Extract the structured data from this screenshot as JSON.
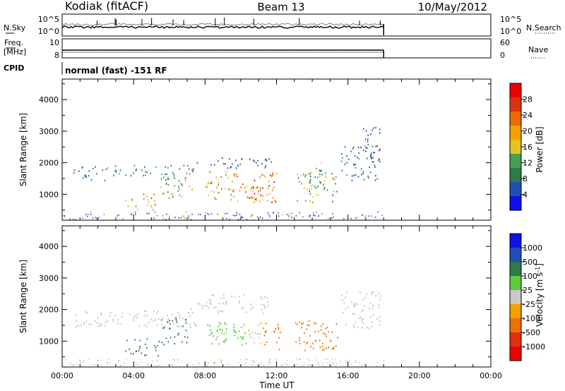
{
  "header": {
    "radar": "Kodiak (fitACF)",
    "beam": "Beam 13",
    "date": "10/May/2012"
  },
  "panels": {
    "nsky_label": "N.Sky",
    "nsky_ticks": [
      "10^5",
      "10^0"
    ],
    "nsearch_label": "N.Search",
    "nsearch_ticks": [
      "10^5",
      "10^0"
    ],
    "freq_label_1": "Freq.",
    "freq_label_2": "[MHz]",
    "freq_ticks": [
      "10",
      "8"
    ],
    "nave_label": "Nave",
    "nave_ticks": [
      "60",
      "0"
    ],
    "cpid_label": "CPID",
    "cpid_value": "normal (fast) -151 RF"
  },
  "colors": {
    "power_scale": [
      "#1010ee",
      "#1f4fb4",
      "#2f7a4a",
      "#46a050",
      "#e8c020",
      "#f5a000",
      "#ee6a00",
      "#e03010",
      "#ee0000"
    ],
    "velocity_scale": [
      "#1010ee",
      "#1f4fb4",
      "#2f7a4a",
      "#5ccc3a",
      "#c8c8c8",
      "#f0a000",
      "#ee7000",
      "#e03010",
      "#ee0000"
    ],
    "velocity_gray": "#c0c0bc"
  },
  "chart_data": [
    {
      "type": "heatmap",
      "name": "power",
      "x": [
        "00:00",
        "04:00",
        "08:00",
        "12:00",
        "16:00",
        "20:00",
        "00:00"
      ],
      "xlim_hours": [
        0,
        24
      ],
      "ylabel": "Slant Range [km]",
      "yticks": [
        1000,
        2000,
        3000,
        4000
      ],
      "ylim": [
        180,
        4650
      ],
      "colorbar_label": "Power [dB]",
      "colorbar_ticks": [
        "28",
        "24",
        "20",
        "16",
        "12",
        "8",
        "4"
      ],
      "colorbar_range": [
        0,
        32
      ],
      "data_end_hour": 18,
      "regions": [
        {
          "t": [
            0.6,
            2.5
          ],
          "r": [
            1450,
            1900
          ],
          "v": 8
        },
        {
          "t": [
            2.5,
            7.5
          ],
          "r": [
            1600,
            1950
          ],
          "v": 10
        },
        {
          "t": [
            3.5,
            5.2
          ],
          "r": [
            500,
            1050
          ],
          "v": 14
        },
        {
          "t": [
            5.5,
            7.5
          ],
          "r": [
            900,
            1700
          ],
          "v": 12
        },
        {
          "t": [
            7.5,
            11.8
          ],
          "r": [
            1850,
            2200
          ],
          "v": 6
        },
        {
          "t": [
            8.0,
            9.5
          ],
          "r": [
            850,
            1750
          ],
          "v": 16
        },
        {
          "t": [
            9.5,
            12.0
          ],
          "r": [
            750,
            1700
          ],
          "v": 21
        },
        {
          "t": [
            10.5,
            11.8
          ],
          "r": [
            800,
            1300
          ],
          "v": 26
        },
        {
          "t": [
            13.0,
            15.5
          ],
          "r": [
            750,
            1700
          ],
          "v": 13
        },
        {
          "t": [
            13.8,
            14.6
          ],
          "r": [
            1150,
            2100
          ],
          "v": 11
        },
        {
          "t": [
            15.6,
            17.8
          ],
          "r": [
            1450,
            2600
          ],
          "v": 8
        },
        {
          "t": [
            16.8,
            17.8
          ],
          "r": [
            2100,
            3200
          ],
          "v": 5
        }
      ]
    },
    {
      "type": "heatmap",
      "name": "velocity",
      "x": [
        "00:00",
        "04:00",
        "08:00",
        "12:00",
        "16:00",
        "20:00",
        "00:00"
      ],
      "xlabel": "Time UT",
      "xlim_hours": [
        0,
        24
      ],
      "ylabel": "Slant Range [km]",
      "yticks": [
        1000,
        2000,
        3000,
        4000
      ],
      "ylim": [
        180,
        4650
      ],
      "colorbar_label": "Velocity [m s^-1]",
      "colorbar_ticks": [
        "1000",
        "500",
        "100",
        "25",
        "-25",
        "-100",
        "-500",
        "-1000"
      ],
      "data_end_hour": 18,
      "regions": [
        {
          "t": [
            0.6,
            7.5
          ],
          "r": [
            1450,
            2000
          ],
          "v": 0
        },
        {
          "t": [
            3.5,
            5.5
          ],
          "r": [
            550,
            1100
          ],
          "v": 300
        },
        {
          "t": [
            5.5,
            7.0
          ],
          "r": [
            900,
            1800
          ],
          "v": 200
        },
        {
          "t": [
            7.2,
            11.5
          ],
          "r": [
            1900,
            2500
          ],
          "v": 0
        },
        {
          "t": [
            8.0,
            9.2
          ],
          "r": [
            900,
            1750
          ],
          "v": 60
        },
        {
          "t": [
            9.0,
            10.4
          ],
          "r": [
            850,
            1700
          ],
          "v": 70
        },
        {
          "t": [
            10.4,
            11.2
          ],
          "r": [
            850,
            1600
          ],
          "v": -20
        },
        {
          "t": [
            11.2,
            12.2
          ],
          "r": [
            750,
            1600
          ],
          "v": -200
        },
        {
          "t": [
            13.0,
            15.5
          ],
          "r": [
            700,
            1700
          ],
          "v": -300
        },
        {
          "t": [
            15.6,
            17.8
          ],
          "r": [
            1400,
            2600
          ],
          "v": 0
        }
      ]
    }
  ]
}
